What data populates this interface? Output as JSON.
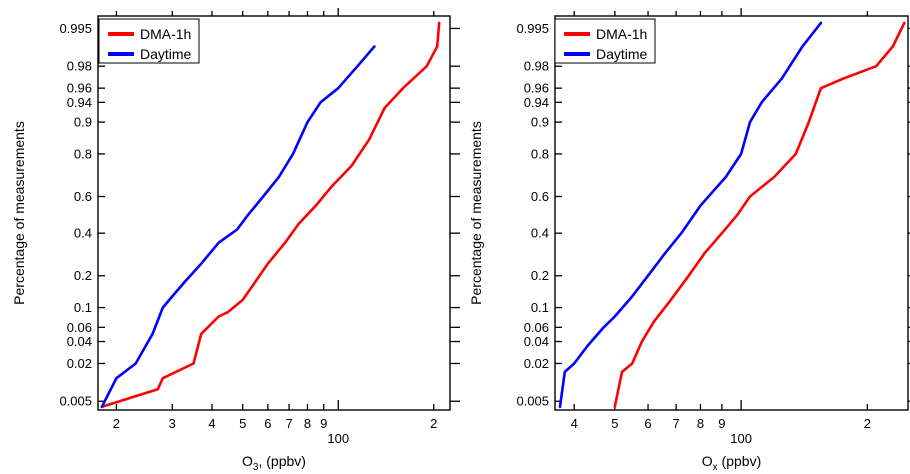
{
  "chart_data": [
    {
      "type": "line",
      "xlabel": "O",
      "xlabel_sub": "3",
      "xlabel_suffix": ", (ppbv)",
      "ylabel": "Percentage of measurements",
      "xscale": "log",
      "yscale": "probability",
      "xlim": [
        17.5,
        225
      ],
      "ylim": [
        0.0035,
        0.997
      ],
      "x_ticks": [
        {
          "v": 20,
          "label": "2"
        },
        {
          "v": 30,
          "label": "3"
        },
        {
          "v": 40,
          "label": "4"
        },
        {
          "v": 50,
          "label": "5"
        },
        {
          "v": 60,
          "label": "6"
        },
        {
          "v": 70,
          "label": "7"
        },
        {
          "v": 80,
          "label": "8"
        },
        {
          "v": 90,
          "label": "9"
        },
        {
          "v": 100,
          "label": "100"
        },
        {
          "v": 200,
          "label": "2"
        }
      ],
      "y_ticks": [
        {
          "v": 0.005,
          "label": "0.005"
        },
        {
          "v": 0.02,
          "label": "0.02"
        },
        {
          "v": 0.04,
          "label": "0.04"
        },
        {
          "v": 0.06,
          "label": "0.06"
        },
        {
          "v": 0.1,
          "label": "0.1"
        },
        {
          "v": 0.2,
          "label": "0.2"
        },
        {
          "v": 0.4,
          "label": "0.4"
        },
        {
          "v": 0.6,
          "label": "0.6"
        },
        {
          "v": 0.8,
          "label": "0.8"
        },
        {
          "v": 0.9,
          "label": "0.9"
        },
        {
          "v": 0.94,
          "label": "0.94"
        },
        {
          "v": 0.96,
          "label": "0.96"
        },
        {
          "v": 0.98,
          "label": "0.98"
        },
        {
          "v": 0.995,
          "label": "0.995"
        }
      ],
      "legend": "top-left",
      "series": [
        {
          "name": "DMA-1h",
          "color": "#ff0000",
          "points": [
            [
              18,
              0.004
            ],
            [
              27,
              0.008
            ],
            [
              28,
              0.012
            ],
            [
              35,
              0.02
            ],
            [
              37,
              0.05
            ],
            [
              42,
              0.08
            ],
            [
              45,
              0.09
            ],
            [
              50,
              0.12
            ],
            [
              55,
              0.18
            ],
            [
              60,
              0.25
            ],
            [
              68,
              0.35
            ],
            [
              75,
              0.45
            ],
            [
              85,
              0.55
            ],
            [
              95,
              0.65
            ],
            [
              110,
              0.75
            ],
            [
              125,
              0.85
            ],
            [
              140,
              0.93
            ],
            [
              160,
              0.96
            ],
            [
              190,
              0.98
            ],
            [
              205,
              0.99
            ],
            [
              208,
              0.996
            ]
          ]
        },
        {
          "name": "Daytime",
          "color": "#0000ff",
          "points": [
            [
              18,
              0.004
            ],
            [
              20,
              0.012
            ],
            [
              23,
              0.02
            ],
            [
              26,
              0.05
            ],
            [
              28,
              0.1
            ],
            [
              30,
              0.13
            ],
            [
              33,
              0.18
            ],
            [
              37,
              0.25
            ],
            [
              42,
              0.35
            ],
            [
              48,
              0.42
            ],
            [
              52,
              0.5
            ],
            [
              58,
              0.6
            ],
            [
              65,
              0.7
            ],
            [
              72,
              0.8
            ],
            [
              80,
              0.9
            ],
            [
              88,
              0.94
            ],
            [
              100,
              0.96
            ],
            [
              115,
              0.98
            ],
            [
              130,
              0.99
            ]
          ]
        }
      ]
    },
    {
      "type": "line",
      "xlabel": "O",
      "xlabel_sub": "x",
      "xlabel_suffix": " (ppbv)",
      "ylabel": "Percentage of measurements",
      "xscale": "log",
      "yscale": "probability",
      "xlim": [
        36,
        250
      ],
      "ylim": [
        0.0035,
        0.997
      ],
      "x_ticks": [
        {
          "v": 40,
          "label": "4"
        },
        {
          "v": 50,
          "label": "5"
        },
        {
          "v": 60,
          "label": "6"
        },
        {
          "v": 70,
          "label": "7"
        },
        {
          "v": 80,
          "label": "8"
        },
        {
          "v": 90,
          "label": "9"
        },
        {
          "v": 100,
          "label": "100"
        },
        {
          "v": 200,
          "label": "2"
        }
      ],
      "y_ticks": [
        {
          "v": 0.005,
          "label": "0.005"
        },
        {
          "v": 0.02,
          "label": "0.02"
        },
        {
          "v": 0.04,
          "label": "0.04"
        },
        {
          "v": 0.06,
          "label": "0.06"
        },
        {
          "v": 0.1,
          "label": "0.1"
        },
        {
          "v": 0.2,
          "label": "0.2"
        },
        {
          "v": 0.4,
          "label": "0.4"
        },
        {
          "v": 0.6,
          "label": "0.6"
        },
        {
          "v": 0.8,
          "label": "0.8"
        },
        {
          "v": 0.9,
          "label": "0.9"
        },
        {
          "v": 0.94,
          "label": "0.94"
        },
        {
          "v": 0.96,
          "label": "0.96"
        },
        {
          "v": 0.98,
          "label": "0.98"
        },
        {
          "v": 0.995,
          "label": "0.995"
        }
      ],
      "legend": "top-left",
      "series": [
        {
          "name": "DMA-1h",
          "color": "#ff0000",
          "points": [
            [
              50,
              0.004
            ],
            [
              52,
              0.015
            ],
            [
              55,
              0.02
            ],
            [
              58,
              0.04
            ],
            [
              62,
              0.07
            ],
            [
              68,
              0.12
            ],
            [
              75,
              0.2
            ],
            [
              82,
              0.3
            ],
            [
              90,
              0.4
            ],
            [
              98,
              0.5
            ],
            [
              105,
              0.6
            ],
            [
              120,
              0.7
            ],
            [
              135,
              0.8
            ],
            [
              145,
              0.9
            ],
            [
              155,
              0.96
            ],
            [
              175,
              0.97
            ],
            [
              210,
              0.98
            ],
            [
              230,
              0.99
            ],
            [
              245,
              0.996
            ]
          ]
        },
        {
          "name": "Daytime",
          "color": "#0000ff",
          "points": [
            [
              37,
              0.004
            ],
            [
              38,
              0.015
            ],
            [
              40,
              0.02
            ],
            [
              43,
              0.035
            ],
            [
              47,
              0.06
            ],
            [
              50,
              0.08
            ],
            [
              55,
              0.13
            ],
            [
              60,
              0.2
            ],
            [
              66,
              0.3
            ],
            [
              72,
              0.4
            ],
            [
              80,
              0.55
            ],
            [
              92,
              0.7
            ],
            [
              100,
              0.8
            ],
            [
              105,
              0.9
            ],
            [
              112,
              0.94
            ],
            [
              125,
              0.97
            ],
            [
              140,
              0.99
            ],
            [
              155,
              0.996
            ]
          ]
        }
      ]
    }
  ]
}
